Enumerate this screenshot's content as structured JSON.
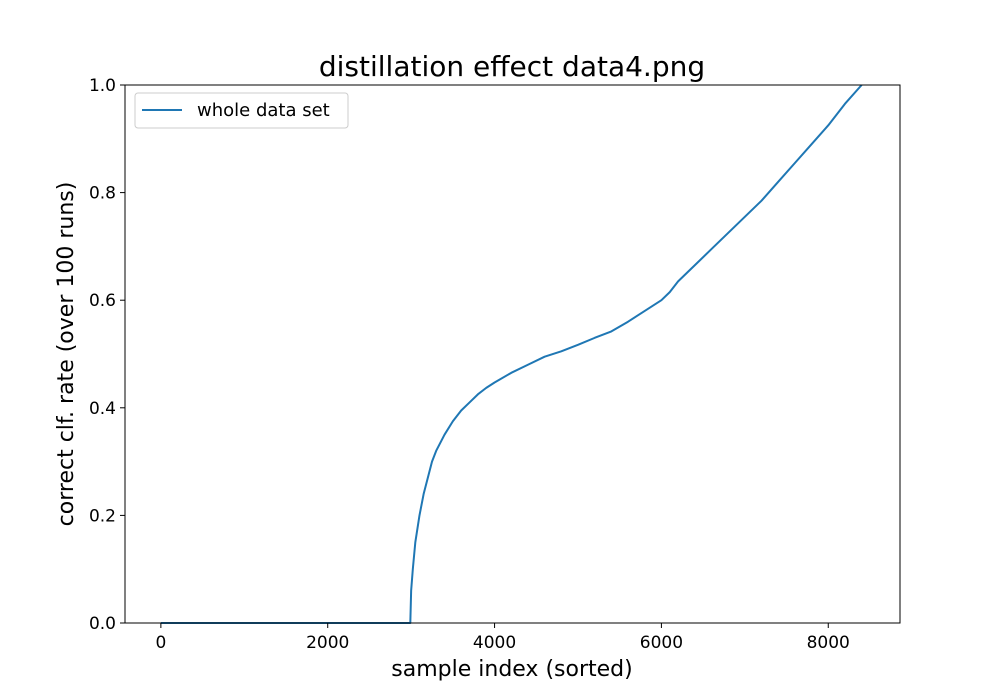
{
  "chart_data": {
    "type": "line",
    "title": "distillation effect data4.png",
    "xlabel": "sample index (sorted)",
    "ylabel": "correct clf. rate (over 100 runs)",
    "xlim": [
      -430,
      8860
    ],
    "ylim": [
      0.0,
      1.0
    ],
    "xticks": [
      0,
      2000,
      4000,
      6000,
      8000
    ],
    "xtick_labels": [
      "0",
      "2000",
      "4000",
      "6000",
      "8000"
    ],
    "yticks": [
      0.0,
      0.2,
      0.4,
      0.6,
      0.8,
      1.0
    ],
    "ytick_labels": [
      "0.0",
      "0.2",
      "0.4",
      "0.6",
      "0.8",
      "1.0"
    ],
    "grid": false,
    "legend_position": "upper-left",
    "series": [
      {
        "name": "whole data set",
        "color": "#1f77b4",
        "x": [
          0,
          2990,
          3000,
          3020,
          3050,
          3100,
          3150,
          3200,
          3250,
          3300,
          3400,
          3500,
          3600,
          3700,
          3800,
          3900,
          4000,
          4200,
          4400,
          4600,
          4800,
          5000,
          5200,
          5400,
          5600,
          5800,
          6000,
          6100,
          6200,
          6400,
          6600,
          6800,
          7000,
          7200,
          7400,
          7600,
          7800,
          8000,
          8200,
          8400
        ],
        "y": [
          0.0,
          0.0,
          0.06,
          0.1,
          0.15,
          0.2,
          0.24,
          0.27,
          0.3,
          0.32,
          0.35,
          0.375,
          0.395,
          0.41,
          0.425,
          0.437,
          0.447,
          0.465,
          0.48,
          0.495,
          0.505,
          0.517,
          0.53,
          0.542,
          0.56,
          0.58,
          0.6,
          0.615,
          0.635,
          0.665,
          0.695,
          0.725,
          0.755,
          0.785,
          0.82,
          0.855,
          0.89,
          0.925,
          0.965,
          1.0
        ]
      }
    ]
  }
}
